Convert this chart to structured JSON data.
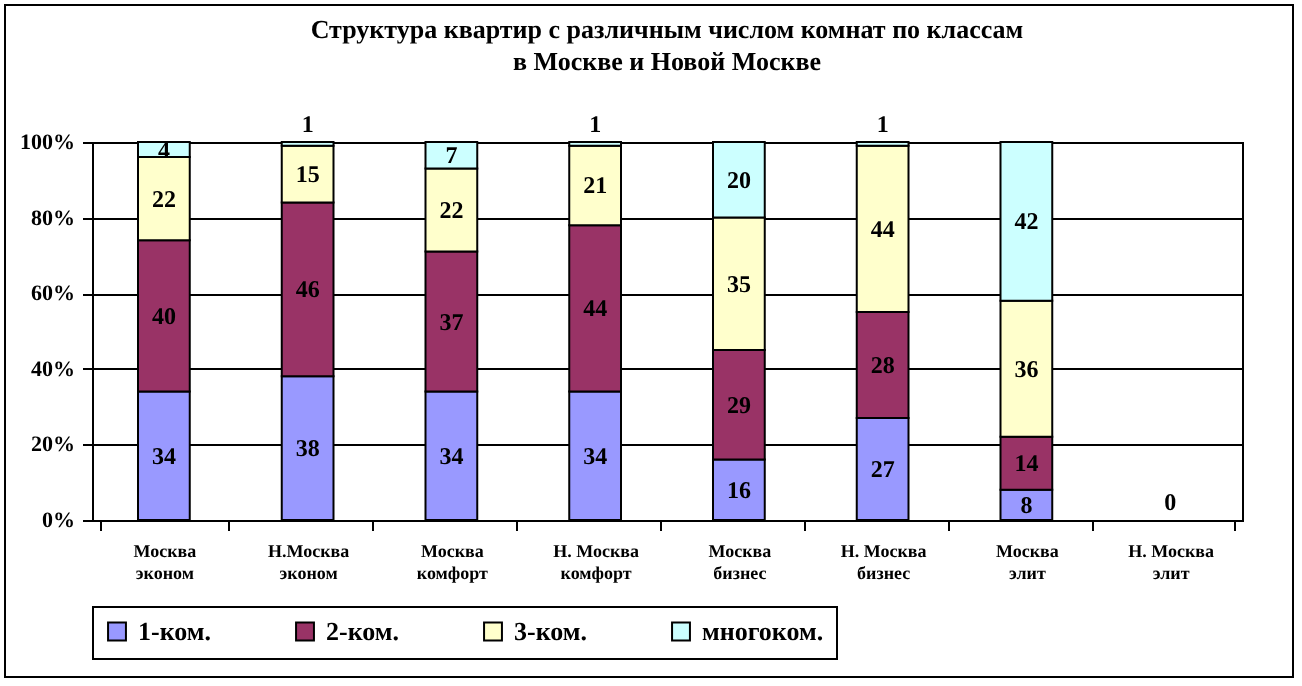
{
  "chart_data": {
    "type": "bar",
    "stacked": true,
    "title": "Структура квартир с различным числом комнат по классам\nв Москве и Новой Москве",
    "categories": [
      "Москва эконом",
      "Н.Москва эконом",
      "Москва комфорт",
      "Н. Москва комфорт",
      "Москва бизнес",
      "Н. Москва бизнес",
      "Москва элит",
      "Н. Москва элит"
    ],
    "series": [
      {
        "name": "1-ком.",
        "color": "#9999ff",
        "values": [
          34,
          38,
          34,
          34,
          16,
          27,
          8,
          0
        ]
      },
      {
        "name": "2-ком.",
        "color": "#993366",
        "values": [
          40,
          46,
          37,
          44,
          29,
          28,
          14,
          null
        ]
      },
      {
        "name": "3-ком.",
        "color": "#ffffcc",
        "values": [
          22,
          15,
          22,
          21,
          35,
          44,
          36,
          null
        ]
      },
      {
        "name": "многоком.",
        "color": "#ccffff",
        "values": [
          4,
          1,
          7,
          1,
          20,
          1,
          42,
          null
        ]
      }
    ],
    "ylim": [
      0,
      100
    ],
    "yticks": [
      {
        "value": 0,
        "label": "0%"
      },
      {
        "value": 20,
        "label": "20%"
      },
      {
        "value": 40,
        "label": "40%"
      },
      {
        "value": 60,
        "label": "60%"
      },
      {
        "value": 80,
        "label": "80%"
      },
      {
        "value": 100,
        "label": "100%"
      }
    ],
    "grid": "y",
    "legend": "bottom",
    "data_labels": true
  }
}
